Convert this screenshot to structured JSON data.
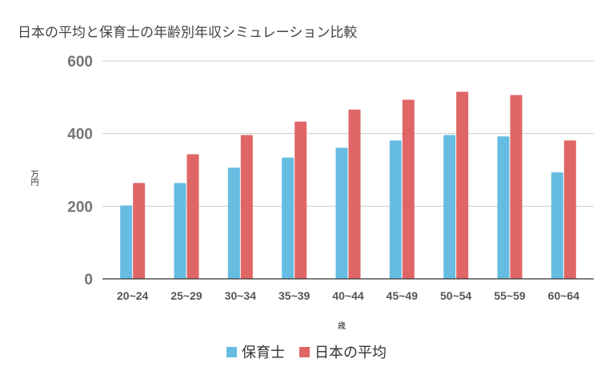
{
  "chart_data": {
    "type": "bar",
    "title": "日本の平均と保育士の年齢別年収シミュレーション比較",
    "xlabel": "歳",
    "ylabel": "万円",
    "ylim": [
      0,
      600
    ],
    "yticks": [
      0,
      200,
      400,
      600
    ],
    "grid": true,
    "legend_position": "bottom",
    "categories": [
      "20~24",
      "25~29",
      "30~34",
      "35~39",
      "40~44",
      "45~49",
      "50~54",
      "55~59",
      "60~64"
    ],
    "series": [
      {
        "name": "保育士",
        "color": "#67BCE2",
        "values": [
          202,
          264,
          306,
          334,
          361,
          381,
          396,
          392,
          293
        ]
      },
      {
        "name": "日本の平均",
        "color": "#E06666",
        "values": [
          264,
          343,
          396,
          433,
          466,
          493,
          515,
          506,
          381
        ]
      }
    ]
  }
}
